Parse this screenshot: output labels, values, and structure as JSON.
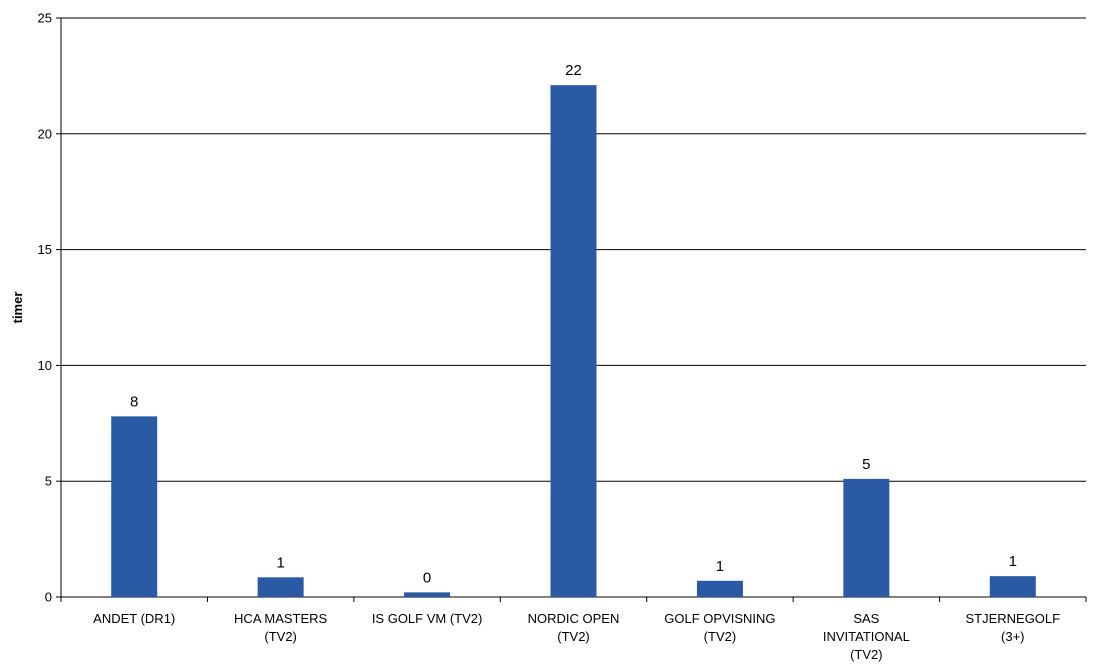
{
  "chart_data": {
    "type": "bar",
    "categories": [
      "ANDET (DR1)",
      "HCA MASTERS (TV2)",
      "IS GOLF VM (TV2)",
      "NORDIC OPEN (TV2)",
      "GOLF OPVISNING (TV2)",
      "SAS INVITATIONAL (TV2)",
      "STJERNEGOLF (3+)"
    ],
    "category_lines": [
      [
        "ANDET (DR1)"
      ],
      [
        "HCA MASTERS",
        "(TV2)"
      ],
      [
        "IS GOLF VM (TV2)"
      ],
      [
        "NORDIC OPEN",
        "(TV2)"
      ],
      [
        "GOLF OPVISNING",
        "(TV2)"
      ],
      [
        "SAS",
        "INVITATIONAL",
        "(TV2)"
      ],
      [
        "STJERNEGOLF",
        "(3+)"
      ]
    ],
    "values": [
      7.8,
      0.85,
      0.2,
      22.1,
      0.7,
      5.1,
      0.9
    ],
    "data_labels": [
      "8",
      "1",
      "0",
      "22",
      "1",
      "5",
      "1"
    ],
    "title": "",
    "xlabel": "",
    "ylabel": "timer",
    "ylim": [
      0,
      25
    ],
    "yticks": [
      0,
      5,
      10,
      15,
      20,
      25
    ],
    "grid": true,
    "legend": "none",
    "bar_color": "#2a5aa3"
  }
}
